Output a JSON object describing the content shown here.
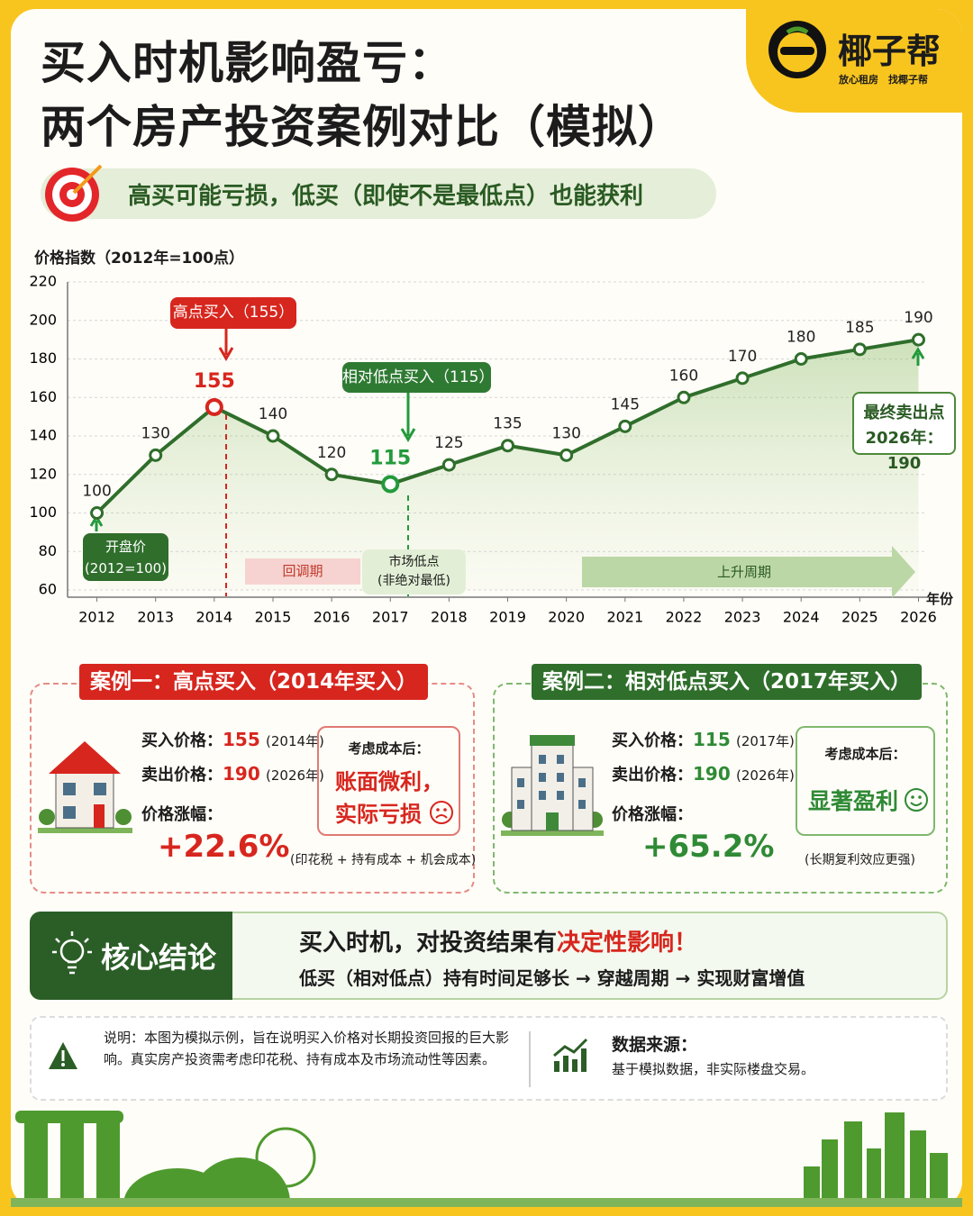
{
  "header": {
    "title_lines": [
      "买入时机影响盈亏：",
      "两个房产投资案例对比（模拟）"
    ],
    "brand": "椰子帮",
    "brand_tagline": "放心租房　找椰子帮",
    "subtitle": "高买可能亏损，低买（即使不是最低点）也能获利"
  },
  "chart_data": {
    "type": "line",
    "y_axis_label": "价格指数（2012年=100点）",
    "x_axis_label": "年份",
    "x": [
      2012,
      2013,
      2014,
      2015,
      2016,
      2017,
      2018,
      2019,
      2020,
      2021,
      2022,
      2023,
      2024,
      2025,
      2026
    ],
    "values": [
      100,
      130,
      155,
      140,
      120,
      115,
      125,
      135,
      130,
      145,
      160,
      170,
      180,
      185,
      190
    ],
    "color": "#2f6e2b",
    "marker_colors": [
      "#2f6e2b",
      "#2f6e2b",
      "#d7261e",
      "#2f6e2b",
      "#2f6e2b",
      "#239a3b",
      "#2f6e2b",
      "#2f6e2b",
      "#2f6e2b",
      "#2f6e2b",
      "#2f6e2b",
      "#2f6e2b",
      "#2f6e2b",
      "#2f6e2b",
      "#2f6e2b"
    ],
    "xlim": [
      2011.5,
      2026.1
    ],
    "xticks": [
      2012,
      2013,
      2014,
      2015,
      2016,
      2017,
      2018,
      2019,
      2020,
      2021,
      2022,
      2023,
      2024,
      2025,
      2026
    ],
    "ylim": [
      60,
      220
    ],
    "yticks": [
      60,
      80,
      100,
      120,
      140,
      160,
      180,
      200,
      220
    ],
    "grid": true,
    "annotations": {
      "high_buy": "高点买入（155）",
      "low_buy": "相对低点买入（115）",
      "start": [
        "开盘价",
        "(2012=100)"
      ],
      "final": [
        "最终卖出点",
        "2026年：190"
      ],
      "correction": "回调期",
      "market_low": [
        "市场低点",
        "(非绝对最低)"
      ],
      "uptrend": "上升周期"
    }
  },
  "cases": [
    {
      "title": "案例一：高点买入（2014年买入）",
      "buy_label": "买入价格：",
      "buy_price": "155",
      "buy_note": "(2014年)",
      "sell_label": "卖出价格：",
      "sell_price": "190",
      "sell_note": "(2026年)",
      "change_label": "价格涨幅：",
      "change": "+22.6%",
      "after_cost_label": "考虑成本后：",
      "verdict": [
        "账面微利，",
        "实际亏损"
      ],
      "footnote": "(印花税 + 持有成本 + 机会成本)"
    },
    {
      "title": "案例二：相对低点买入（2017年买入）",
      "buy_label": "买入价格：",
      "buy_price": "115",
      "buy_note": "(2017年)",
      "sell_label": "卖出价格：",
      "sell_price": "190",
      "sell_note": "(2026年)",
      "change_label": "价格涨幅：",
      "change": "+65.2%",
      "after_cost_label": "考虑成本后：",
      "verdict": [
        "显著盈利"
      ],
      "footnote": "(长期复利效应更强)"
    }
  ],
  "conclusion": {
    "label": "核心结论",
    "headline_prefix": "买入时机，对投资结果有",
    "headline_emphasis": "决定性影响！",
    "detail": "低买（相对低点）持有时间足够长 → 穿越周期 → 实现财富增值"
  },
  "notes": {
    "disclaimer": "说明：本图为模拟示例，旨在说明买入价格对长期投资回报的巨大影响。真实房产投资需考虑印花税、持有成本及市场流动性等因素。",
    "source_label": "数据来源：",
    "source": "基于模拟数据，非实际楼盘交易。"
  }
}
